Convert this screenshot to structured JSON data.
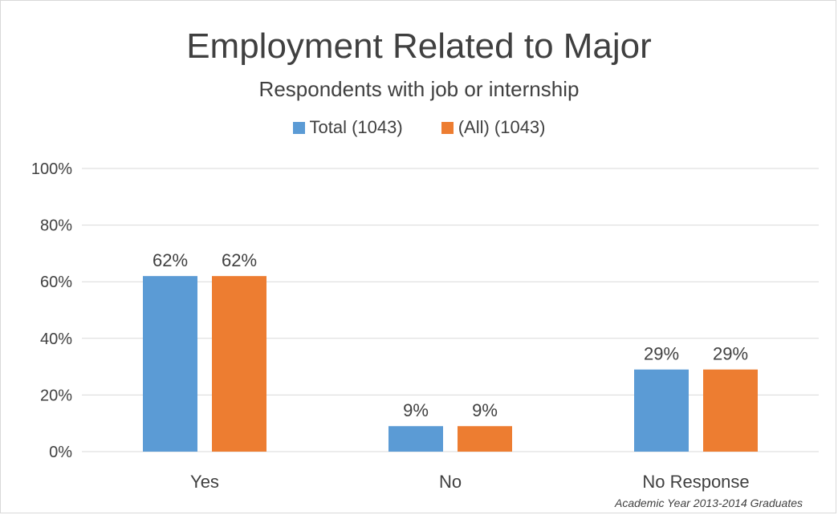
{
  "chart_data": {
    "type": "bar",
    "title": "Employment Related to Major",
    "subtitle": "Respondents with job or internship",
    "categories": [
      "Yes",
      "No",
      "No Response"
    ],
    "series": [
      {
        "name": "Total (1043)",
        "values": [
          62,
          9,
          29
        ],
        "labels": [
          "62%",
          "9%",
          "29%"
        ],
        "color": "#5b9bd5"
      },
      {
        "name": "(All) (1043)",
        "values": [
          62,
          9,
          29
        ],
        "labels": [
          "62%",
          "9%",
          "29%"
        ],
        "color": "#ed7d31"
      }
    ],
    "yticks": [
      "0%",
      "20%",
      "40%",
      "60%",
      "80%",
      "100%"
    ],
    "ylim": [
      0,
      100
    ],
    "grid": true,
    "legend_position": "top",
    "footnote": "Academic Year 2013-2014 Graduates",
    "colors": {
      "gridline": "#d9d9d9",
      "text": "#404040"
    }
  }
}
